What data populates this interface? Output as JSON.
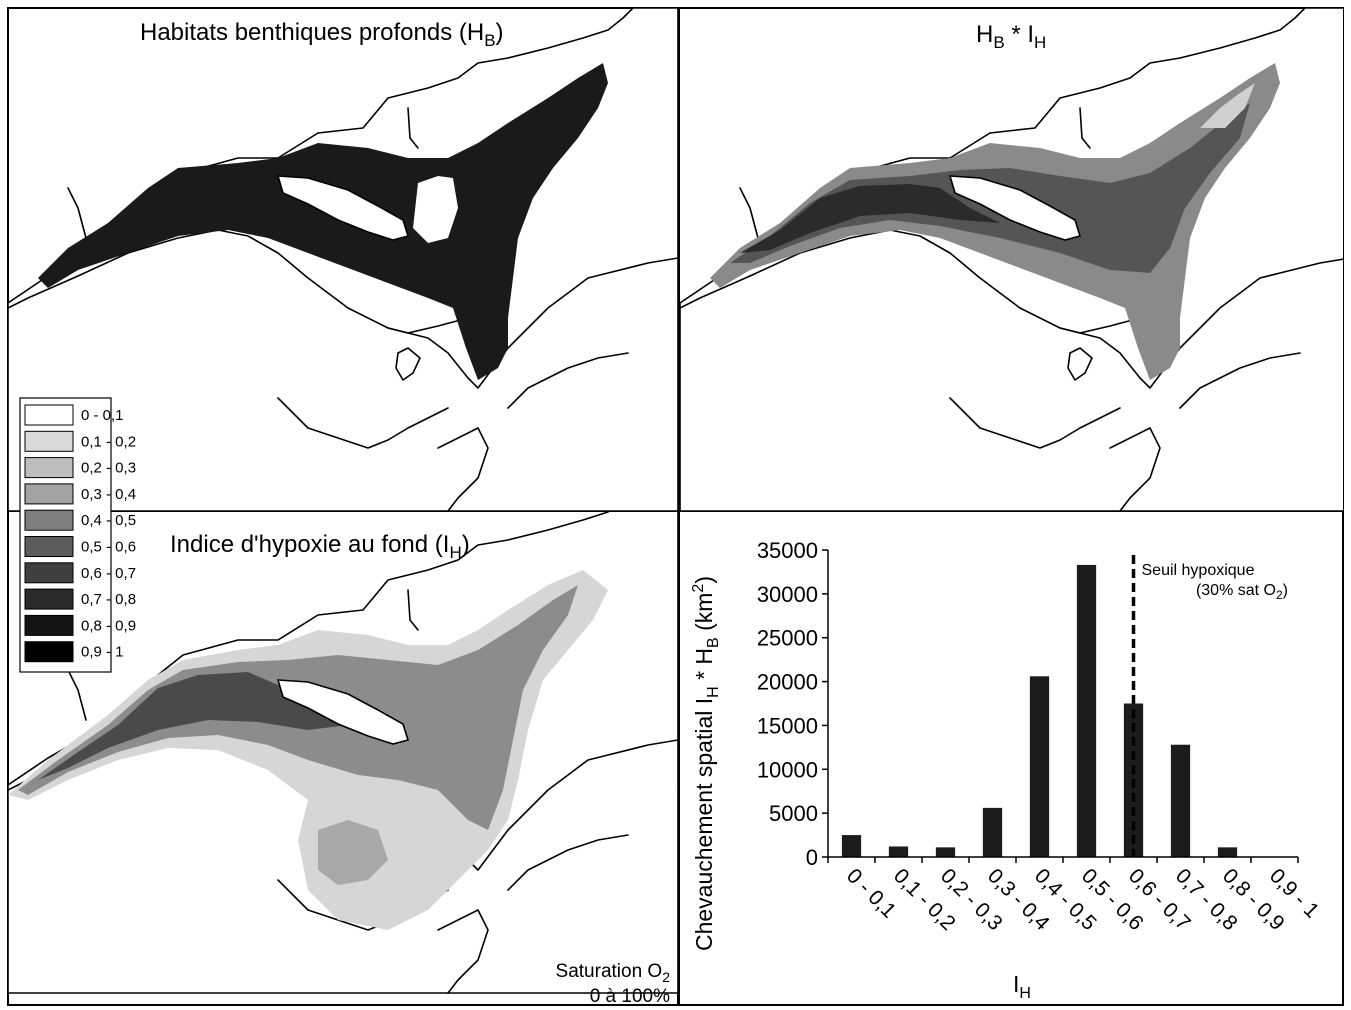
{
  "panels": {
    "habitat": {
      "title_main": "Habitats benthiques profonds (H",
      "title_sub": "B",
      "title_end": ")"
    },
    "product": {
      "t1": "H",
      "t1_sub": "B",
      "t2": " * I",
      "t2_sub": "H"
    },
    "hypoxia": {
      "title_main": "Indice d'hypoxie au fond (I",
      "title_sub": "H",
      "title_end": ")",
      "note_line1_main": "Saturation O",
      "note_line1_sub": "2",
      "note_line2": "0 à 100%"
    }
  },
  "legend": {
    "items": [
      {
        "label": "0 - 0,1",
        "color": "#ffffff"
      },
      {
        "label": "0,1 - 0,2",
        "color": "#d9d9d9"
      },
      {
        "label": "0,2 - 0,3",
        "color": "#bdbdbd"
      },
      {
        "label": "0,3 - 0,4",
        "color": "#a3a3a3"
      },
      {
        "label": "0,4 - 0,5",
        "color": "#7f7f7f"
      },
      {
        "label": "0,5 - 0,6",
        "color": "#5c5c5c"
      },
      {
        "label": "0,6 - 0,7",
        "color": "#3f3f3f"
      },
      {
        "label": "0,7 - 0,8",
        "color": "#2a2a2a"
      },
      {
        "label": "0,8 - 0,9",
        "color": "#141414"
      },
      {
        "label": "0,9 - 1",
        "color": "#000000"
      }
    ]
  },
  "chart_data": {
    "type": "bar",
    "categories": [
      "0 - 0,1",
      "0,1 - 0,2",
      "0,2 - 0,3",
      "0,3 - 0,4",
      "0,4 - 0,5",
      "0,5 - 0,6",
      "0,6 - 0,7",
      "0,7 - 0,8",
      "0,8 - 0,9",
      "0,9 - 1"
    ],
    "values": [
      2500,
      1200,
      1100,
      5600,
      20600,
      33300,
      17500,
      12800,
      1100,
      0
    ],
    "ylim": [
      0,
      35000
    ],
    "yticks": [
      0,
      5000,
      10000,
      15000,
      20000,
      25000,
      30000,
      35000
    ],
    "ylabel_parts": {
      "a": "Chevauchement spatial I",
      "a_sub": "H",
      "b": " * H",
      "b_sub": "B",
      "c": " (km",
      "c_sup": "2",
      "d": ")"
    },
    "xlabel_parts": {
      "a": "I",
      "a_sub": "H"
    },
    "grid": false,
    "threshold": {
      "position_between": [
        6,
        7
      ],
      "label_line1": "Seuil hypoxique",
      "label_line2_main": "(30% sat O",
      "label_line2_sub": "2",
      "label_line2_end": ")"
    },
    "bar_color": "#1c1c1c"
  }
}
